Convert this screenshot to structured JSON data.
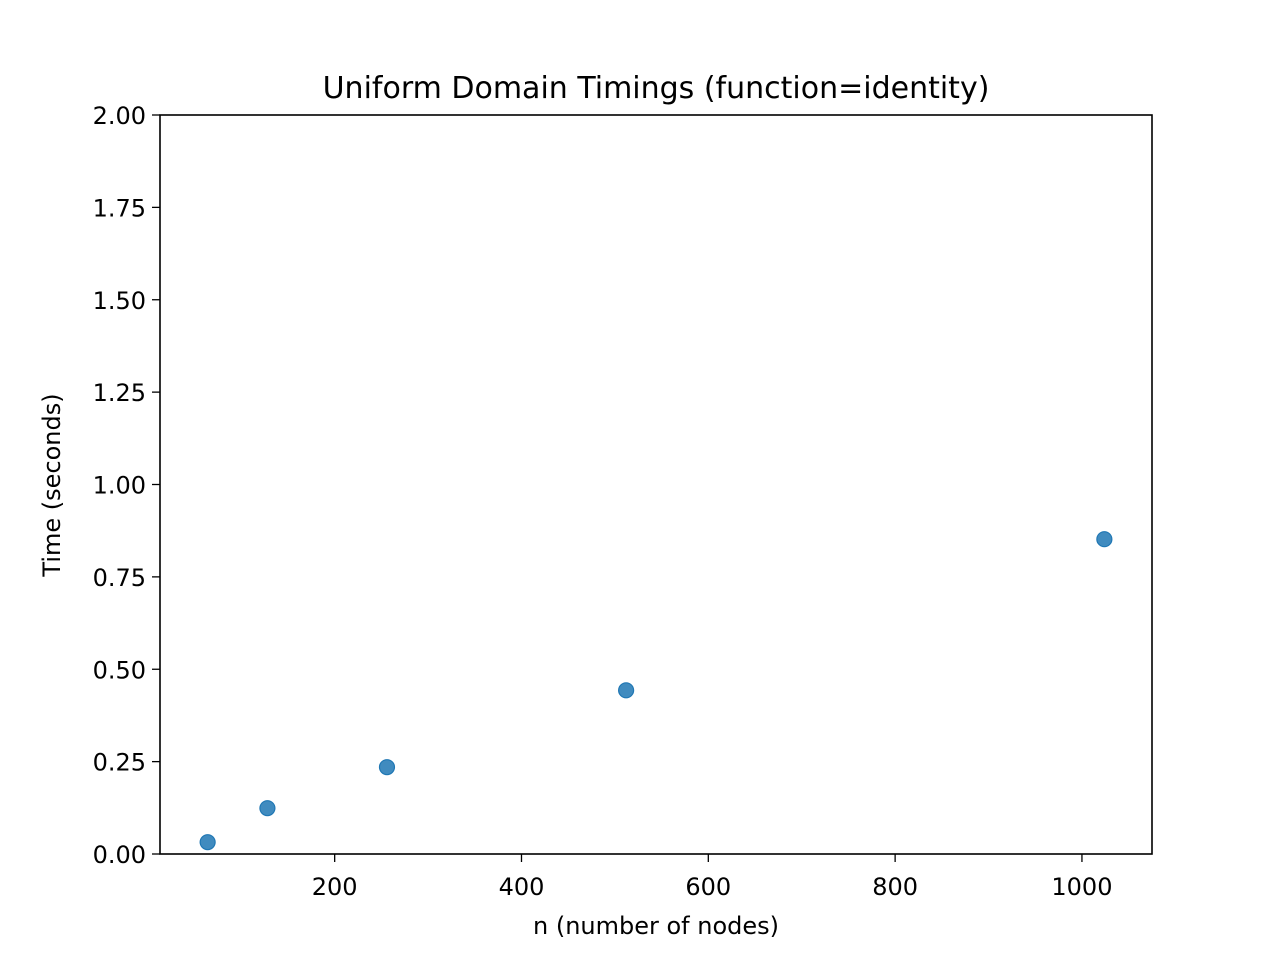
{
  "chart_data": {
    "type": "scatter",
    "title": "Uniform Domain Timings (function=identity)",
    "xlabel": "n (number of nodes)",
    "ylabel": "Time (seconds)",
    "xlim": [
      13,
      1075
    ],
    "ylim": [
      0,
      2
    ],
    "xticks": [
      200,
      400,
      600,
      800,
      1000
    ],
    "xtick_labels": [
      "200",
      "400",
      "600",
      "800",
      "1000"
    ],
    "yticks": [
      0,
      0.25,
      0.5,
      0.75,
      1.0,
      1.25,
      1.5,
      1.75,
      2.0
    ],
    "ytick_labels": [
      "0.00",
      "0.25",
      "0.50",
      "0.75",
      "1.00",
      "1.25",
      "1.50",
      "1.75",
      "2.00"
    ],
    "grid": false,
    "series": [
      {
        "x": [
          64,
          128,
          256,
          512,
          1024
        ],
        "y": [
          0.032,
          0.124,
          0.235,
          0.443,
          0.852
        ],
        "color": "#1f77b4"
      }
    ]
  }
}
